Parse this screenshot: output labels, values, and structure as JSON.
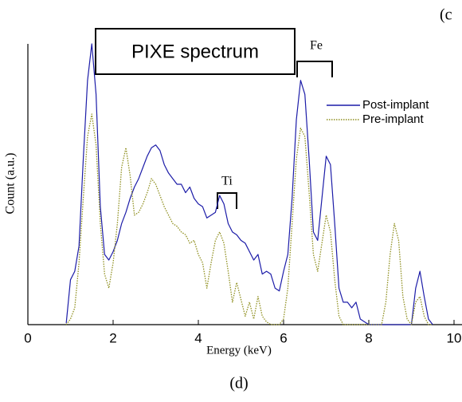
{
  "chart_data": {
    "type": "line",
    "title": "PIXE spectrum",
    "corner_label": "(c",
    "caption": "(d)",
    "xlabel": "Energy (keV)",
    "ylabel": "Count (a.u.)",
    "annotations": [
      {
        "text": "Fe",
        "x": 6.8
      },
      {
        "text": "Ti",
        "x": 4.75
      }
    ],
    "legend": "upper right",
    "xlim": [
      0,
      10
    ],
    "xticks": [
      0,
      2,
      4,
      6,
      8,
      10
    ],
    "ylim": [
      0,
      100
    ],
    "x": [
      0.9,
      1.0,
      1.1,
      1.2,
      1.3,
      1.4,
      1.5,
      1.6,
      1.7,
      1.8,
      1.9,
      2.0,
      2.1,
      2.2,
      2.3,
      2.4,
      2.5,
      2.6,
      2.7,
      2.8,
      2.9,
      3.0,
      3.1,
      3.2,
      3.3,
      3.4,
      3.5,
      3.6,
      3.7,
      3.8,
      3.9,
      4.0,
      4.1,
      4.2,
      4.3,
      4.4,
      4.5,
      4.6,
      4.7,
      4.8,
      4.9,
      5.0,
      5.1,
      5.2,
      5.3,
      5.4,
      5.5,
      5.6,
      5.7,
      5.8,
      5.9,
      6.0,
      6.1,
      6.2,
      6.3,
      6.4,
      6.5,
      6.6,
      6.7,
      6.8,
      6.9,
      7.0,
      7.1,
      7.2,
      7.3,
      7.4,
      7.5,
      7.6,
      7.7,
      7.8,
      7.9,
      8.0,
      8.1,
      8.2,
      8.3,
      8.4,
      8.5,
      8.6,
      8.7,
      8.8,
      8.9,
      9.0,
      9.1,
      9.2,
      9.3,
      9.4,
      9.5
    ],
    "series": [
      {
        "name": "Post-implant",
        "color": "#1c1ca8",
        "linestyle": "solid",
        "values": [
          0.5,
          16,
          19,
          28,
          59,
          87,
          100,
          82,
          42,
          25,
          23,
          26,
          30,
          36,
          40,
          45,
          49,
          52,
          56,
          60,
          63,
          64,
          62,
          57,
          54,
          52,
          50,
          50,
          47,
          49,
          45,
          43,
          42,
          38,
          39,
          40,
          46,
          43,
          36,
          33,
          32,
          30,
          29,
          26,
          23,
          25,
          18,
          19,
          18,
          13,
          12,
          19,
          25,
          45,
          73,
          87,
          82,
          59,
          33,
          30,
          45,
          60,
          57,
          36,
          13,
          8,
          8,
          6,
          8,
          2,
          1,
          0,
          0,
          0,
          0,
          0,
          0,
          0,
          0,
          0,
          0,
          0,
          13,
          19,
          10,
          2,
          0
        ]
      },
      {
        "name": "Pre-implant",
        "color": "#8f8f1f",
        "linestyle": "dotted",
        "values": [
          0,
          2,
          6,
          22,
          45,
          67,
          75,
          64,
          36,
          18,
          13,
          22,
          36,
          56,
          63,
          53,
          39,
          40,
          43,
          47,
          52,
          50,
          46,
          42,
          39,
          36,
          35,
          33,
          32,
          29,
          30,
          25,
          22,
          13,
          22,
          30,
          33,
          29,
          19,
          8,
          15,
          9,
          3,
          8,
          2,
          10,
          3,
          1,
          0,
          0,
          0,
          2,
          13,
          36,
          59,
          70,
          67,
          47,
          25,
          19,
          29,
          39,
          33,
          16,
          3,
          0,
          0,
          0,
          0,
          0,
          0,
          0,
          0,
          0,
          0,
          8,
          25,
          36,
          30,
          10,
          2,
          0,
          8,
          10,
          3,
          0,
          0
        ]
      }
    ]
  }
}
